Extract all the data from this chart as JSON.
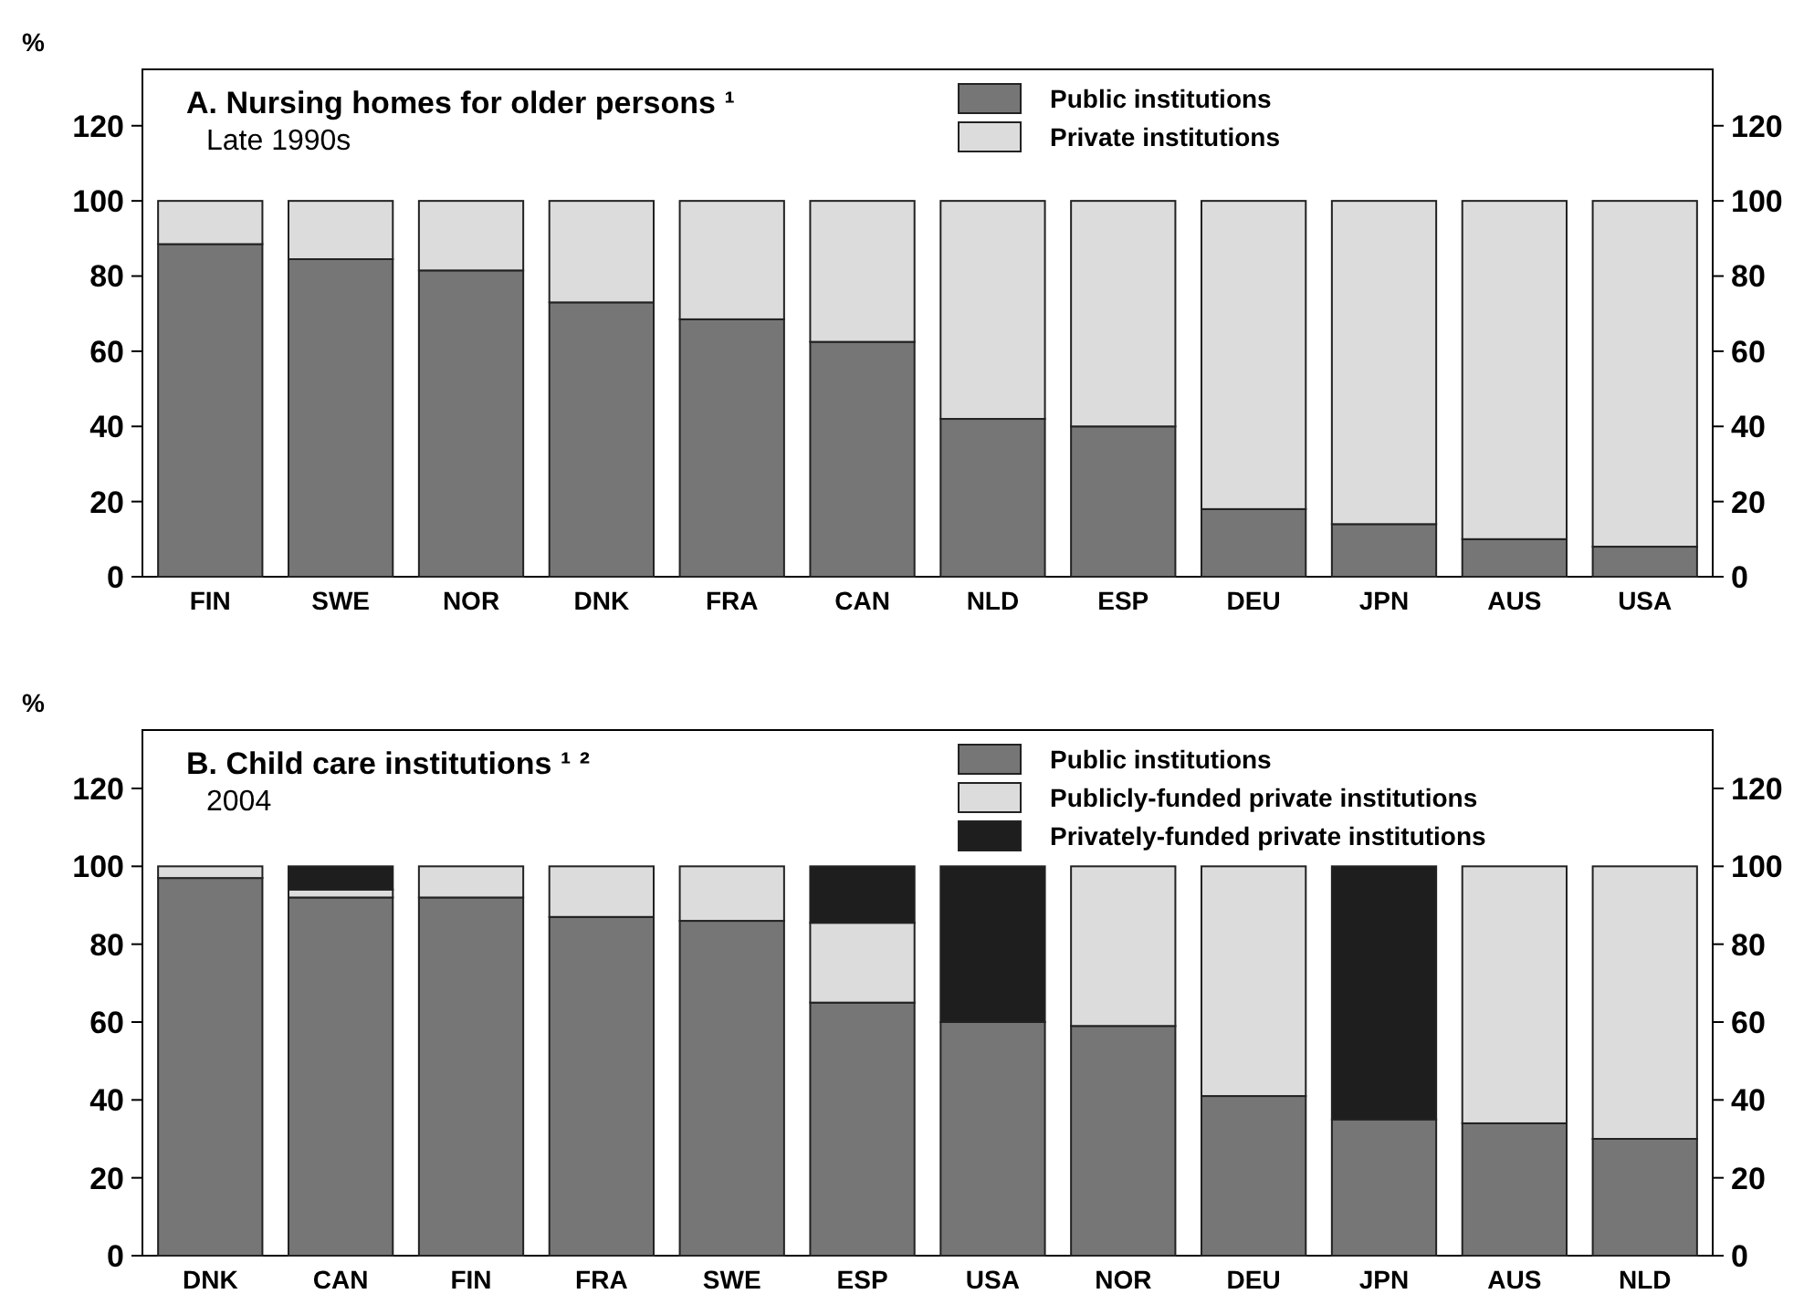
{
  "chart_data": [
    {
      "type": "bar",
      "stacked": true,
      "title": "A. Nursing homes for older persons ¹",
      "subtitle": "Late 1990s",
      "ylabel": "%",
      "categories": [
        "FIN",
        "SWE",
        "NOR",
        "DNK",
        "FRA",
        "CAN",
        "NLD",
        "ESP",
        "DEU",
        "JPN",
        "AUS",
        "USA"
      ],
      "series": [
        {
          "name": "Public institutions",
          "color": "#767676",
          "values": [
            88.5,
            84.5,
            81.5,
            73,
            68.5,
            62.5,
            42,
            40,
            18,
            14,
            10,
            8
          ]
        },
        {
          "name": "Private institutions",
          "color": "#dcdcdc",
          "values": [
            11.5,
            15.5,
            18.5,
            27,
            31.5,
            37.5,
            58,
            60,
            82,
            86,
            90,
            92
          ]
        }
      ],
      "ylim": [
        0,
        135
      ],
      "yticks": [
        0,
        20,
        40,
        60,
        80,
        100,
        120
      ],
      "y2lim": [
        0,
        135
      ],
      "y2ticks": [
        0,
        20,
        40,
        60,
        80,
        100,
        120
      ],
      "grid": false,
      "legend": "top"
    },
    {
      "type": "bar",
      "stacked": true,
      "title": "B. Child care institutions ¹ ²",
      "subtitle": "2004",
      "ylabel": "%",
      "categories": [
        "DNK",
        "CAN",
        "FIN",
        "FRA",
        "SWE",
        "ESP",
        "USA",
        "NOR",
        "DEU",
        "JPN",
        "AUS",
        "NLD"
      ],
      "series": [
        {
          "name": "Public institutions",
          "color": "#767676",
          "values": [
            97,
            92,
            92,
            87,
            86,
            65,
            60,
            59,
            41,
            35,
            34,
            30
          ]
        },
        {
          "name": "Publicly-funded private institutions",
          "color": "#dcdcdc",
          "values": [
            3,
            2,
            8,
            13,
            14,
            20.5,
            null,
            41,
            59,
            null,
            66,
            70
          ]
        },
        {
          "name": "Privately-funded private institutions",
          "color": "#1e1e1e",
          "values": [
            null,
            6,
            null,
            null,
            null,
            14.5,
            40,
            null,
            null,
            65,
            null,
            null
          ]
        }
      ],
      "ylim": [
        0,
        135
      ],
      "yticks": [
        0,
        20,
        40,
        60,
        80,
        100,
        120
      ],
      "y2lim": [
        0,
        135
      ],
      "y2ticks": [
        0,
        20,
        40,
        60,
        80,
        100,
        120
      ],
      "grid": false,
      "legend": "top"
    }
  ]
}
